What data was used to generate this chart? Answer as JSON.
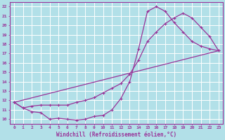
{
  "xlabel": "Windchill (Refroidissement éolien,°C)",
  "background_color": "#b2e0e8",
  "grid_color": "#c8dde0",
  "line_color": "#993399",
  "xlim": [
    -0.5,
    23.5
  ],
  "ylim": [
    9.5,
    22.5
  ],
  "xticks": [
    0,
    1,
    2,
    3,
    4,
    5,
    6,
    7,
    8,
    9,
    10,
    11,
    12,
    13,
    14,
    15,
    16,
    17,
    18,
    19,
    20,
    21,
    22,
    23
  ],
  "yticks": [
    10,
    11,
    12,
    13,
    14,
    15,
    16,
    17,
    18,
    19,
    20,
    21,
    22
  ],
  "line1_x": [
    0,
    1,
    2,
    3,
    4,
    5,
    6,
    7,
    8,
    9,
    10,
    11,
    12,
    13,
    14,
    15,
    16,
    17,
    18,
    19,
    20,
    21,
    22,
    23
  ],
  "line1_y": [
    11.8,
    11.2,
    10.8,
    10.7,
    10.0,
    10.1,
    10.0,
    9.9,
    10.0,
    10.3,
    10.4,
    11.0,
    12.2,
    14.0,
    17.5,
    21.5,
    22.0,
    21.5,
    20.3,
    19.3,
    18.3,
    17.8,
    17.5,
    17.3
  ],
  "line2_x": [
    0,
    1,
    2,
    3,
    4,
    5,
    6,
    7,
    8,
    9,
    10,
    11,
    12,
    13,
    14,
    15,
    16,
    17,
    18,
    19,
    20,
    21,
    22,
    23
  ],
  "line2_y": [
    11.8,
    11.2,
    11.4,
    11.5,
    11.5,
    11.5,
    11.5,
    11.8,
    12.0,
    12.3,
    12.8,
    13.3,
    13.8,
    14.8,
    16.3,
    18.3,
    19.3,
    20.2,
    20.8,
    21.3,
    20.8,
    19.8,
    18.8,
    17.3
  ],
  "line3_x": [
    0,
    23
  ],
  "line3_y": [
    11.8,
    17.3
  ]
}
